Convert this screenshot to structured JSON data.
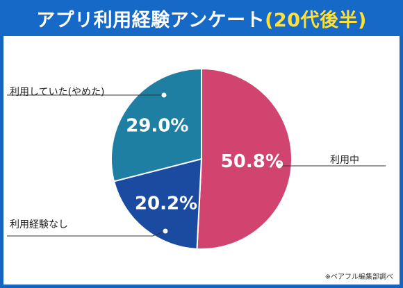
{
  "header": {
    "title_main": "アプリ利用経験アンケート",
    "title_accent": "(20代後半)"
  },
  "source_note": "※ベアフル編集部調べ",
  "colors": {
    "frame": "#1565c0",
    "title_bg": "#1769c7",
    "title_accent": "#ffe033",
    "current": "#d14470",
    "never": "#1b4aa1",
    "quit": "#1f7fa2",
    "leader_line": "#333333"
  },
  "chart_data": {
    "type": "pie",
    "title": "アプリ利用経験アンケート(20代後半)",
    "series": [
      {
        "slices": [
          {
            "category": "利用中",
            "value": 50.8,
            "label": "50.8%",
            "color": "#d14470"
          },
          {
            "category": "利用経験なし",
            "value": 20.2,
            "label": "20.2%",
            "color": "#1b4aa1"
          },
          {
            "category": "利用していた(やめた)",
            "value": 29.0,
            "label": "29.0%",
            "color": "#1f7fa2"
          }
        ]
      }
    ]
  }
}
